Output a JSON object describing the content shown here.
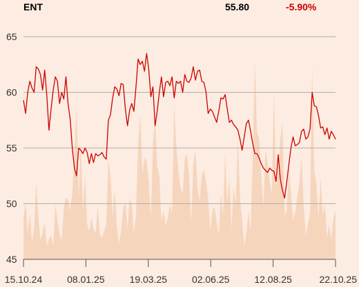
{
  "header": {
    "ticker": "ENT",
    "price": "55.80",
    "change": "-5.90%"
  },
  "colors": {
    "background": "#fcece1",
    "line": "#cc0000",
    "volume": "#f6d5bd",
    "grid": "#b4aea8",
    "negative": "#cc0000"
  },
  "chart_data": {
    "type": "line",
    "title": "",
    "xlabel": "",
    "ylabel": "",
    "ylim": [
      45,
      66
    ],
    "grid": true,
    "y_ticks": [
      {
        "value": 65,
        "label": "65"
      },
      {
        "value": 60,
        "label": "60"
      },
      {
        "value": 55,
        "label": "55"
      },
      {
        "value": 50,
        "label": "50"
      },
      {
        "value": 45,
        "label": "45"
      }
    ],
    "x_ticks": [
      "15.10.24",
      "08.01.25",
      "19.03.25",
      "02.06.25",
      "12.08.25",
      "22.10.25"
    ],
    "x_range": [
      "2024-10-15",
      "2025-10-22"
    ],
    "series": [
      {
        "values": [
          59.3,
          58.1,
          60.0,
          61.0,
          60.4,
          60.0,
          62.3,
          62.1,
          61.6,
          60.2,
          62.0,
          59.7,
          56.6,
          58.5,
          60.2,
          61.4,
          61.0,
          59.0,
          60.0,
          59.4,
          61.4,
          59.0,
          57.6,
          55.0,
          53.2,
          52.5,
          55.0,
          54.8,
          54.5,
          55.0,
          54.6,
          53.6,
          54.5,
          53.7,
          54.5,
          54.3,
          54.4,
          54.6,
          54.2,
          54.0,
          57.5,
          58.0,
          59.5,
          60.5,
          60.3,
          59.7,
          60.8,
          60.7,
          58.5,
          57.0,
          58.4,
          59.0,
          58.3,
          60.5,
          63.0,
          62.5,
          62.8,
          61.9,
          63.5,
          62.1,
          59.6,
          60.5,
          57.0,
          58.3,
          60.0,
          61.4,
          59.6,
          60.9,
          61.0,
          60.6,
          61.4,
          59.5,
          61.0,
          60.8,
          61.0,
          60.0,
          61.6,
          61.0,
          60.9,
          61.3,
          62.3,
          61.1,
          61.9,
          62.0,
          61.0,
          60.9,
          60.0,
          58.1,
          58.5,
          58.3,
          57.8,
          57.3,
          58.3,
          59.5,
          59.4,
          59.8,
          58.5,
          57.3,
          57.5,
          57.1,
          56.9,
          56.6,
          55.8,
          54.8,
          56.0,
          57.2,
          57.5,
          56.5,
          55.4,
          54.5,
          54.5,
          54.1,
          53.6,
          53.2,
          53.0,
          52.8,
          53.2,
          53.0,
          52.9,
          52.0,
          54.4,
          52.2,
          51.2,
          50.5,
          51.9,
          53.5,
          55.0,
          56.0,
          55.2,
          55.3,
          55.5,
          56.5,
          56.7,
          55.8,
          56.0,
          56.7,
          60.0,
          58.8,
          58.7,
          57.9,
          56.8,
          56.9,
          56.2,
          56.8,
          55.8,
          56.5,
          56.2,
          55.8
        ]
      }
    ],
    "volume": [
      0.19,
      0.26,
      0.12,
      0.21,
      0.08,
      0.14,
      0.35,
      0.19,
      0.09,
      0.12,
      0.17,
      0.06,
      0.09,
      0.11,
      0.06,
      0.25,
      0.18,
      0.12,
      0.08,
      0.24,
      0.28,
      0.27,
      0.22,
      0.3,
      0.48,
      0.7,
      0.29,
      0.53,
      0.22,
      0.38,
      0.16,
      0.13,
      0.19,
      0.14,
      0.12,
      0.24,
      0.11,
      0.1,
      0.13,
      0.16,
      0.45,
      0.38,
      0.19,
      0.32,
      0.15,
      0.07,
      0.13,
      0.23,
      0.26,
      0.14,
      0.28,
      0.25,
      0.12,
      0.2,
      0.52,
      0.66,
      0.39,
      0.46,
      0.45,
      0.35,
      0.18,
      0.52,
      0.64,
      0.42,
      0.38,
      0.17,
      0.22,
      0.15,
      0.19,
      0.25,
      0.21,
      0.7,
      0.51,
      0.4,
      0.32,
      0.3,
      0.46,
      0.48,
      0.38,
      0.16,
      0.43,
      0.5,
      0.32,
      0.27,
      0.38,
      0.41,
      0.35,
      0.28,
      0.13,
      0.22,
      0.24,
      0.17,
      0.11,
      0.3,
      0.2,
      0.48,
      0.26,
      0.37,
      0.14,
      0.33,
      0.25,
      0.55,
      0.28,
      0.18,
      0.06,
      0.12,
      0.22,
      0.13,
      0.46,
      0.9,
      0.58,
      0.55,
      0.38,
      0.24,
      0.5,
      0.44,
      0.35,
      0.3,
      0.76,
      0.33,
      0.4,
      0.55,
      0.62,
      0.2,
      0.22,
      0.42,
      0.3,
      0.18,
      0.21,
      0.28,
      0.35,
      0.47,
      0.24,
      0.11,
      0.16,
      0.21,
      0.88,
      0.4,
      0.34,
      0.19,
      0.37,
      0.2,
      0.25,
      0.1,
      0.16,
      0.09,
      0.19,
      0.22
    ]
  }
}
